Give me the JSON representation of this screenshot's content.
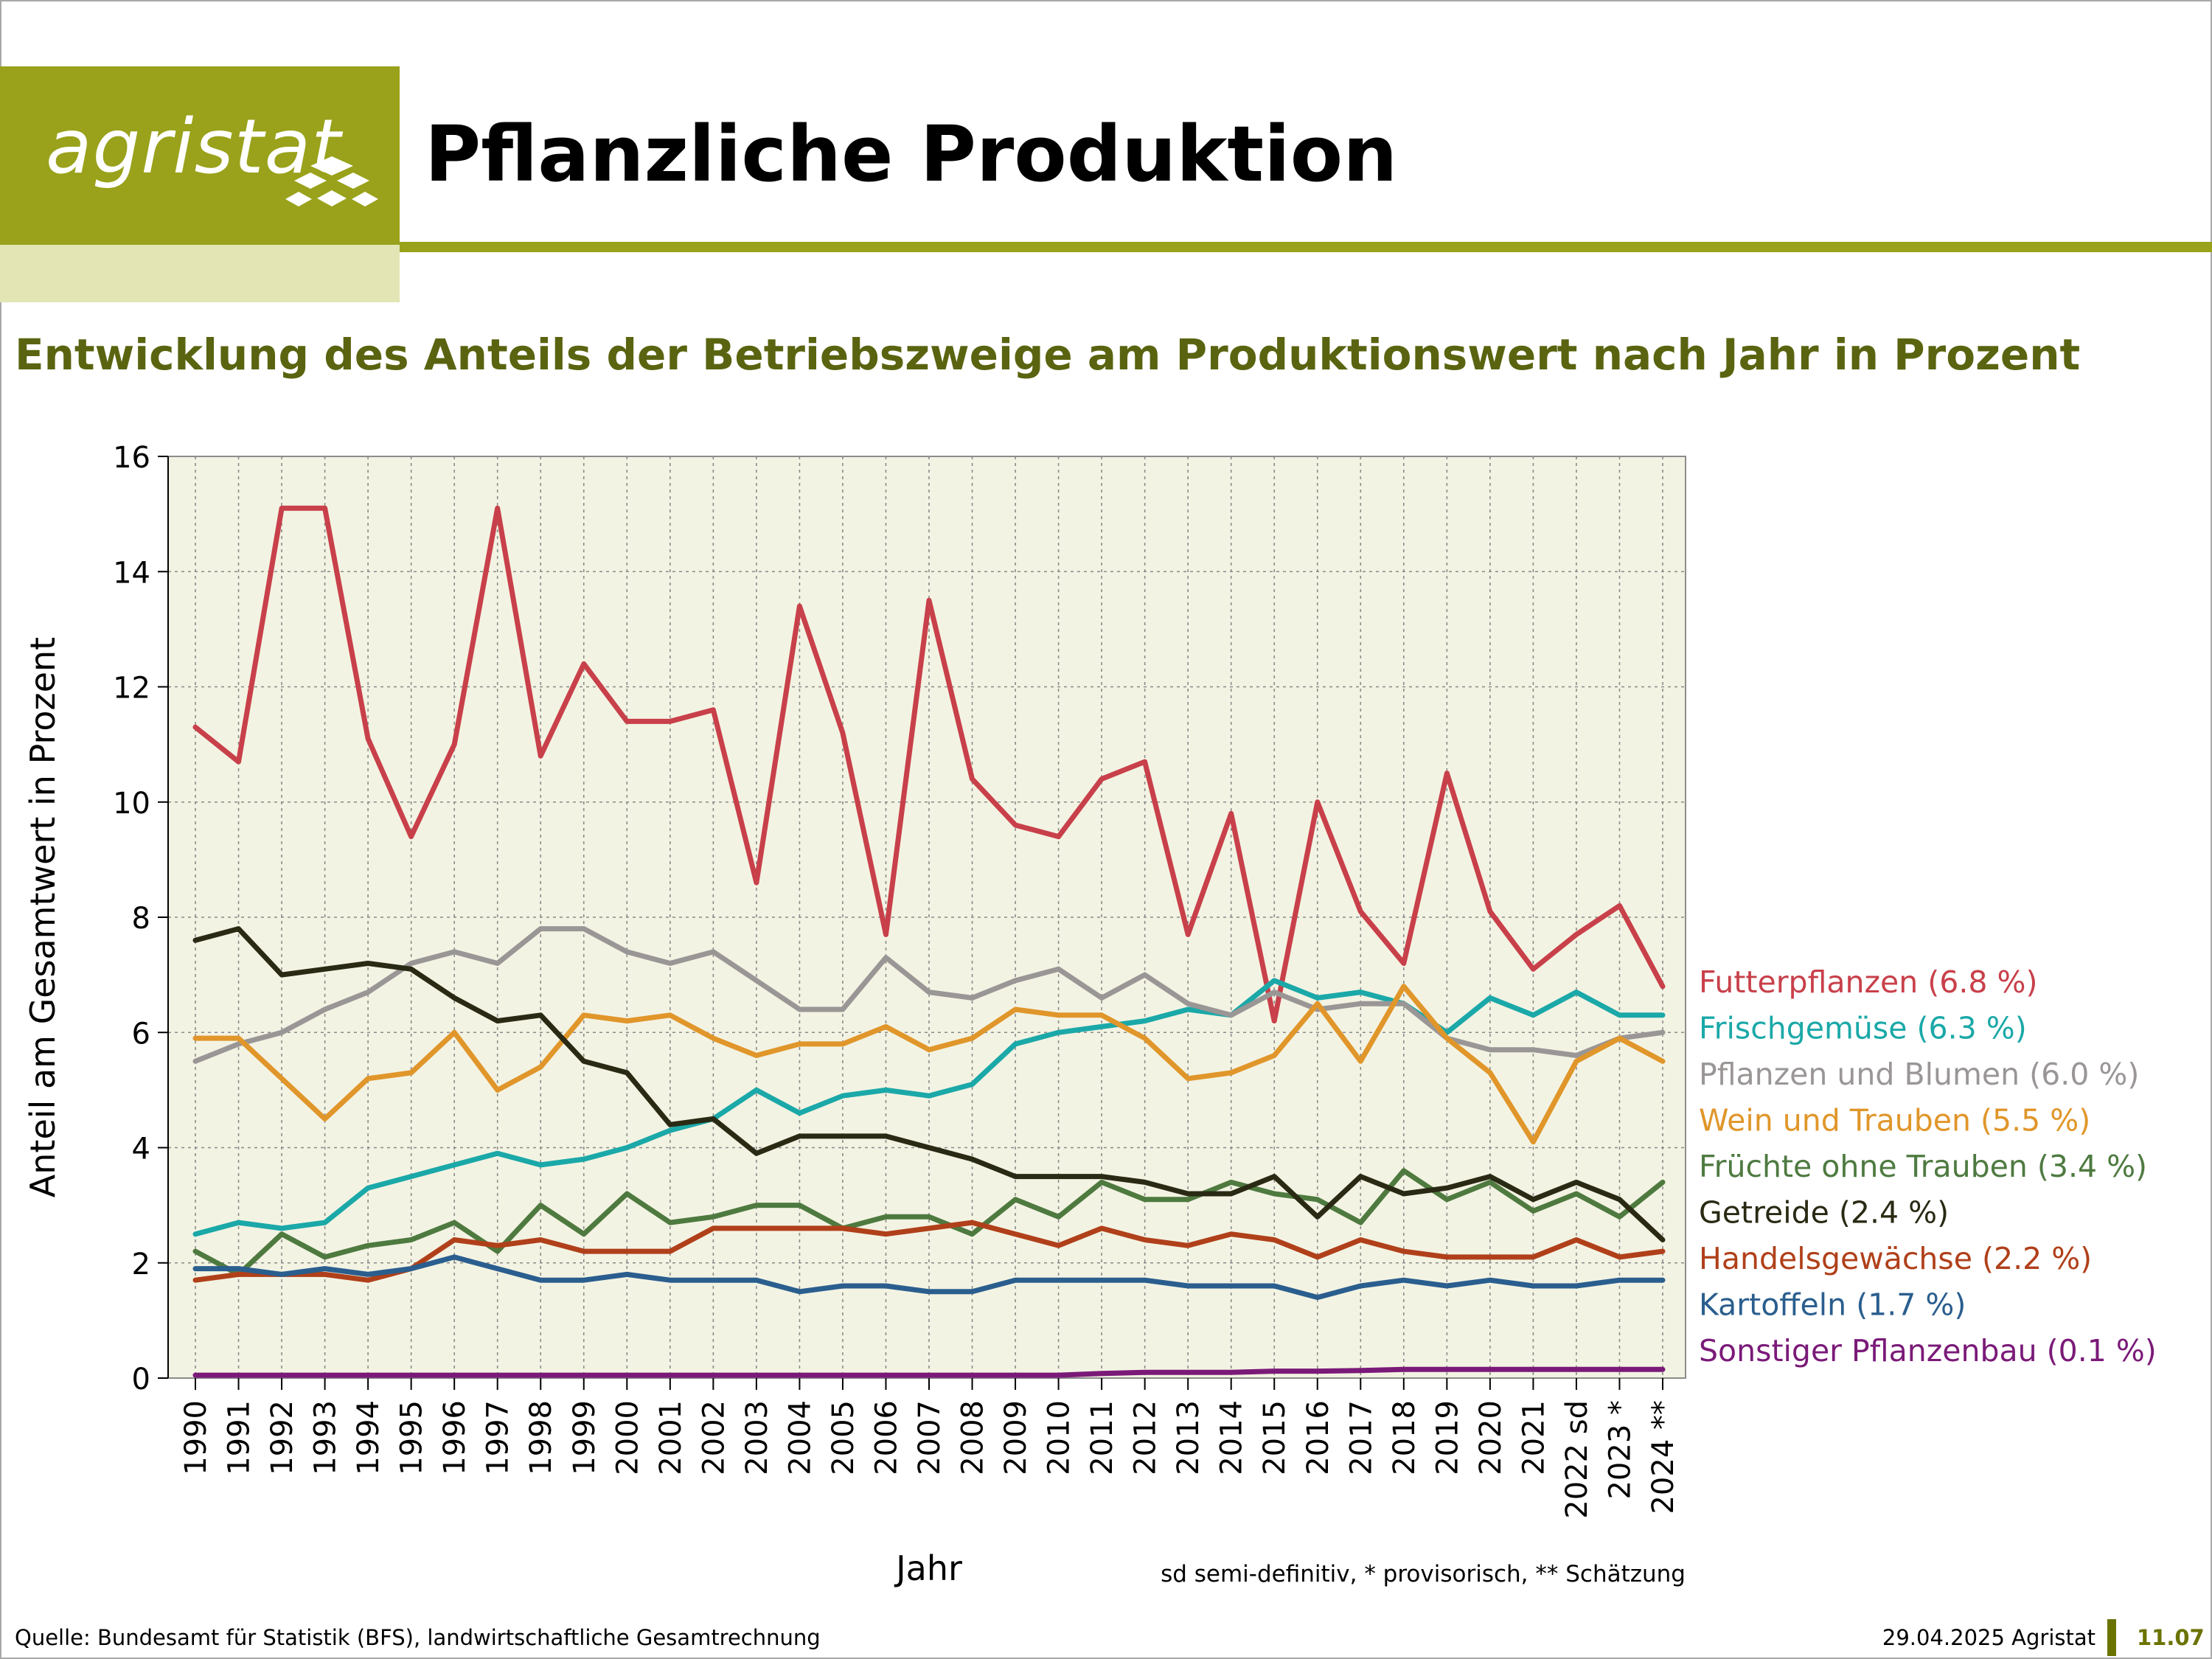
{
  "header": {
    "logo_text": "agristat",
    "title": "Pflanzliche Produktion",
    "brand_color": "#99a21a"
  },
  "subtitle": "Entwicklung des Anteils der Betriebszweige am Produktionswert nach Jahr in Prozent",
  "footer": {
    "source": "Quelle: Bundesamt für Statistik (BFS), landwirtschaftliche Gesamtrechnung",
    "date": "29.04.2025 Agristat",
    "page": "11.07"
  },
  "chart_data": {
    "type": "line",
    "title": "",
    "xlabel": "Jahr",
    "ylabel": "Anteil am Gesamtwert in Prozent",
    "note": "sd semi-definitiv, * provisorisch, ** Schätzung",
    "ylim": [
      0,
      16
    ],
    "yticks": [
      0,
      2,
      4,
      6,
      8,
      10,
      12,
      14,
      16
    ],
    "grid": true,
    "legend_position": "right",
    "plot_background": "#f3f3e3",
    "categories": [
      "1990",
      "1991",
      "1992",
      "1993",
      "1994",
      "1995",
      "1996",
      "1997",
      "1998",
      "1999",
      "2000",
      "2001",
      "2002",
      "2003",
      "2004",
      "2005",
      "2006",
      "2007",
      "2008",
      "2009",
      "2010",
      "2011",
      "2012",
      "2013",
      "2014",
      "2015",
      "2016",
      "2017",
      "2018",
      "2019",
      "2020",
      "2021",
      "2022 sd",
      "2023 *",
      "2024 **"
    ],
    "series": [
      {
        "name": "Futterpflanzen (6.8 %)",
        "color": "#c8404a",
        "values": [
          11.3,
          10.7,
          15.1,
          15.1,
          11.1,
          9.4,
          11.0,
          15.1,
          10.8,
          12.4,
          11.4,
          11.4,
          11.6,
          8.6,
          13.4,
          11.2,
          7.7,
          13.5,
          10.4,
          9.6,
          9.4,
          10.4,
          10.7,
          7.7,
          9.8,
          6.2,
          10.0,
          8.1,
          7.2,
          10.5,
          8.1,
          7.1,
          7.7,
          8.2,
          6.8
        ]
      },
      {
        "name": "Frischgemüse (6.3 %)",
        "color": "#1ba8a8",
        "values": [
          2.5,
          2.7,
          2.6,
          2.7,
          3.3,
          3.5,
          3.7,
          3.9,
          3.7,
          3.8,
          4.0,
          4.3,
          4.5,
          5.0,
          4.6,
          4.9,
          5.0,
          4.9,
          5.1,
          5.8,
          6.0,
          6.1,
          6.2,
          6.4,
          6.3,
          6.9,
          6.6,
          6.7,
          6.5,
          6.0,
          6.6,
          6.3,
          6.7,
          6.3,
          6.3
        ]
      },
      {
        "name": "Pflanzen und Blumen (6.0 %)",
        "color": "#9a9696",
        "values": [
          5.5,
          5.8,
          6.0,
          6.4,
          6.7,
          7.2,
          7.4,
          7.2,
          7.8,
          7.8,
          7.4,
          7.2,
          7.4,
          6.9,
          6.4,
          6.4,
          7.3,
          6.7,
          6.6,
          6.9,
          7.1,
          6.6,
          7.0,
          6.5,
          6.3,
          6.7,
          6.4,
          6.5,
          6.5,
          5.9,
          5.7,
          5.7,
          5.6,
          5.9,
          6.0
        ]
      },
      {
        "name": "Wein und Trauben (5.5 %)",
        "color": "#e0962a",
        "values": [
          5.9,
          5.9,
          5.2,
          4.5,
          5.2,
          5.3,
          6.0,
          5.0,
          5.4,
          6.3,
          6.2,
          6.3,
          5.9,
          5.6,
          5.8,
          5.8,
          6.1,
          5.7,
          5.9,
          6.4,
          6.3,
          6.3,
          5.9,
          5.2,
          5.3,
          5.6,
          6.5,
          5.5,
          6.8,
          5.9,
          5.3,
          4.1,
          5.5,
          5.9,
          5.5
        ]
      },
      {
        "name": "Früchte ohne Trauben (3.4 %)",
        "color": "#4e7a40",
        "values": [
          2.2,
          1.8,
          2.5,
          2.1,
          2.3,
          2.4,
          2.7,
          2.2,
          3.0,
          2.5,
          3.2,
          2.7,
          2.8,
          3.0,
          3.0,
          2.6,
          2.8,
          2.8,
          2.5,
          3.1,
          2.8,
          3.4,
          3.1,
          3.1,
          3.4,
          3.2,
          3.1,
          2.7,
          3.6,
          3.1,
          3.4,
          2.9,
          3.2,
          2.8,
          3.4
        ]
      },
      {
        "name": "Getreide (2.4 %)",
        "color": "#2a2a14",
        "values": [
          7.6,
          7.8,
          7.0,
          7.1,
          7.2,
          7.1,
          6.6,
          6.2,
          6.3,
          5.5,
          5.3,
          4.4,
          4.5,
          3.9,
          4.2,
          4.2,
          4.2,
          4.0,
          3.8,
          3.5,
          3.5,
          3.5,
          3.4,
          3.2,
          3.2,
          3.5,
          2.8,
          3.5,
          3.2,
          3.3,
          3.5,
          3.1,
          3.4,
          3.1,
          2.4
        ]
      },
      {
        "name": "Handelsgewächse (2.2 %)",
        "color": "#b0401a",
        "values": [
          1.7,
          1.8,
          1.8,
          1.8,
          1.7,
          1.9,
          2.4,
          2.3,
          2.4,
          2.2,
          2.2,
          2.2,
          2.6,
          2.6,
          2.6,
          2.6,
          2.5,
          2.6,
          2.7,
          2.5,
          2.3,
          2.6,
          2.4,
          2.3,
          2.5,
          2.4,
          2.1,
          2.4,
          2.2,
          2.1,
          2.1,
          2.1,
          2.4,
          2.1,
          2.2
        ]
      },
      {
        "name": "Kartoffeln (1.7 %)",
        "color": "#2a5e8e",
        "values": [
          1.9,
          1.9,
          1.8,
          1.9,
          1.8,
          1.9,
          2.1,
          1.9,
          1.7,
          1.7,
          1.8,
          1.7,
          1.7,
          1.7,
          1.5,
          1.6,
          1.6,
          1.5,
          1.5,
          1.7,
          1.7,
          1.7,
          1.7,
          1.6,
          1.6,
          1.6,
          1.4,
          1.6,
          1.7,
          1.6,
          1.7,
          1.6,
          1.6,
          1.7,
          1.7
        ]
      },
      {
        "name": "Sonstiger Pflanzenbau (0.1 %)",
        "color": "#7a1a78",
        "values": [
          0.05,
          0.05,
          0.05,
          0.05,
          0.05,
          0.05,
          0.05,
          0.05,
          0.05,
          0.05,
          0.05,
          0.05,
          0.05,
          0.05,
          0.05,
          0.05,
          0.05,
          0.05,
          0.05,
          0.05,
          0.05,
          0.08,
          0.1,
          0.1,
          0.1,
          0.12,
          0.12,
          0.13,
          0.15,
          0.15,
          0.15,
          0.15,
          0.15,
          0.15,
          0.15
        ]
      }
    ]
  }
}
